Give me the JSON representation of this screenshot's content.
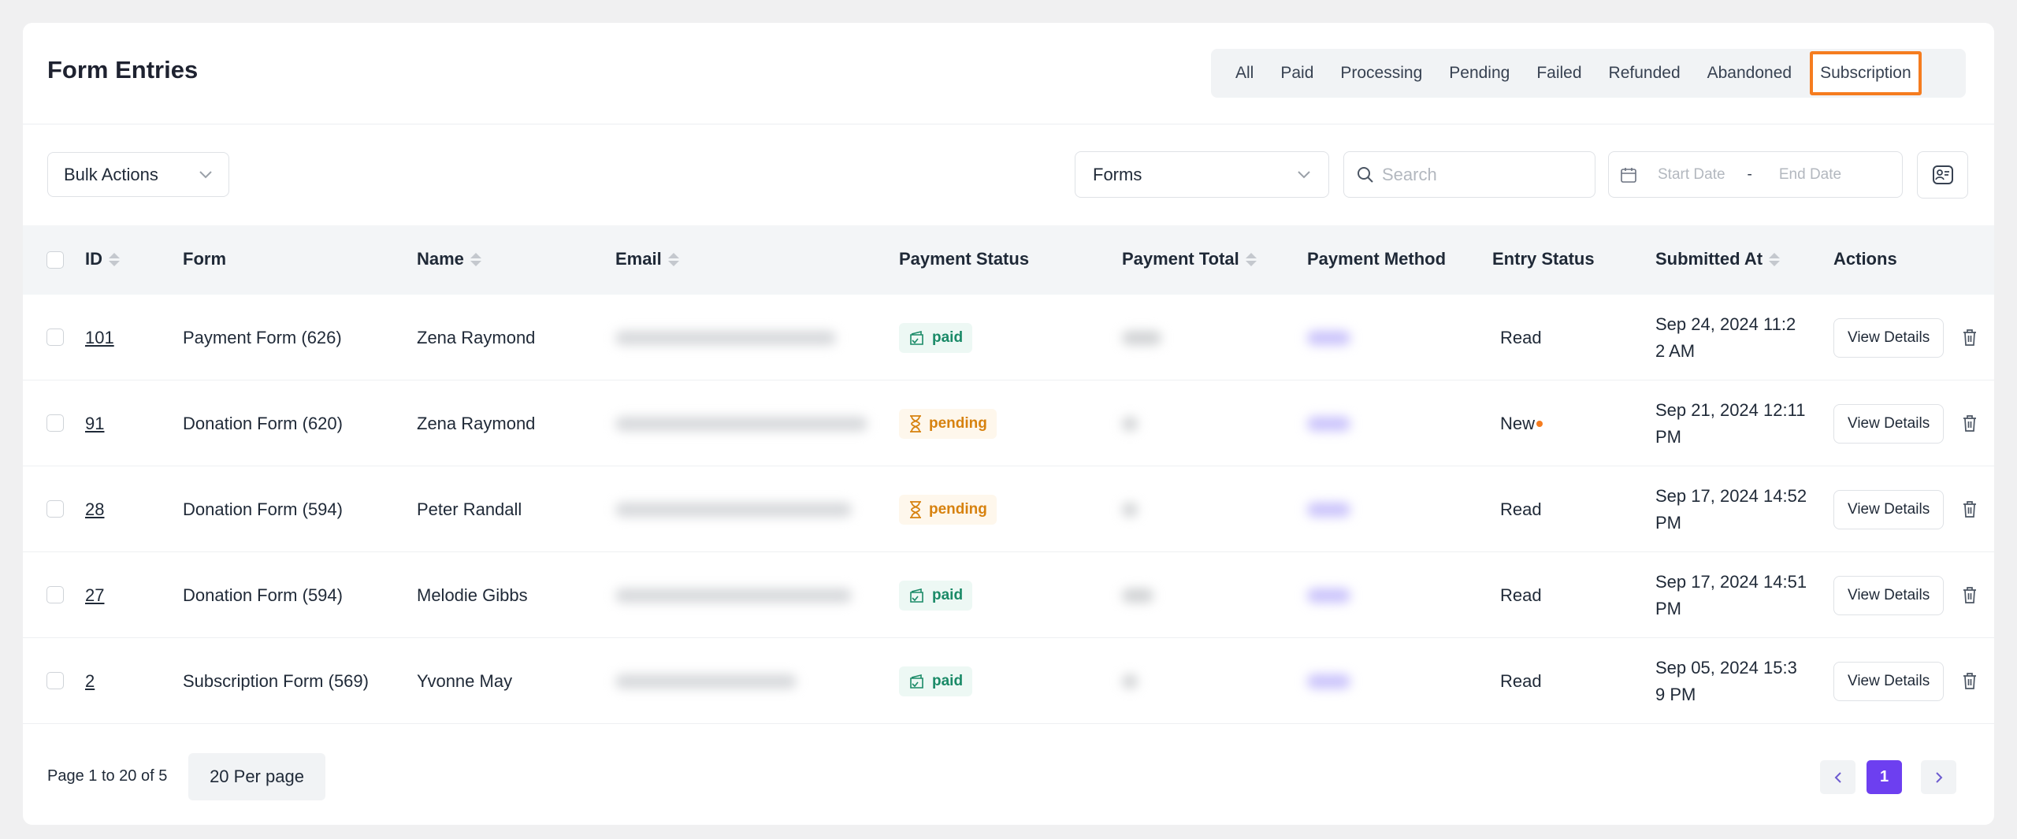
{
  "header": {
    "title": "Form Entries",
    "tabs": [
      "All",
      "Paid",
      "Processing",
      "Pending",
      "Failed",
      "Refunded",
      "Abandoned",
      "Subscription"
    ],
    "active_tab": "Subscription"
  },
  "toolbar": {
    "bulk_actions": "Bulk Actions",
    "forms_select": "Forms",
    "search_placeholder": "Search",
    "start_date_placeholder": "Start Date",
    "date_separator": "-",
    "end_date_placeholder": "End Date"
  },
  "table": {
    "columns": [
      "ID",
      "Form",
      "Name",
      "Email",
      "Payment Status",
      "Payment Total",
      "Payment Method",
      "Entry Status",
      "Submitted At",
      "Actions"
    ],
    "rows": [
      {
        "id": "101",
        "form": "Payment Form (626)",
        "name": "Zena Raymond",
        "payment_status": "paid",
        "entry_status": "Read",
        "new": false,
        "submitted_l1": "Sep 24, 2024 11:2",
        "submitted_l2": "2 AM"
      },
      {
        "id": "91",
        "form": "Donation Form (620)",
        "name": "Zena Raymond",
        "payment_status": "pending",
        "entry_status": "New",
        "new": true,
        "submitted_l1": "Sep 21, 2024 12:11",
        "submitted_l2": "PM"
      },
      {
        "id": "28",
        "form": "Donation Form (594)",
        "name": "Peter Randall",
        "payment_status": "pending",
        "entry_status": "Read",
        "new": false,
        "submitted_l1": "Sep 17, 2024 14:52",
        "submitted_l2": "PM"
      },
      {
        "id": "27",
        "form": "Donation Form (594)",
        "name": "Melodie Gibbs",
        "payment_status": "paid",
        "entry_status": "Read",
        "new": false,
        "submitted_l1": "Sep 17, 2024 14:51",
        "submitted_l2": "PM"
      },
      {
        "id": "2",
        "form": "Subscription Form (569)",
        "name": "Yvonne May",
        "payment_status": "paid",
        "entry_status": "Read",
        "new": false,
        "submitted_l1": "Sep 05, 2024 15:3",
        "submitted_l2": "9 PM"
      }
    ],
    "view_details": "View Details"
  },
  "footer": {
    "page_info": "Page 1 to 20 of 5",
    "per_page": "20 Per page",
    "current_page": "1"
  },
  "colors": {
    "accent": "#6d3ff0",
    "active_tab_border": "#f57c1f",
    "paid": "#1a8a67",
    "pending": "#d7820f",
    "new_dot": "#f57c1f"
  }
}
